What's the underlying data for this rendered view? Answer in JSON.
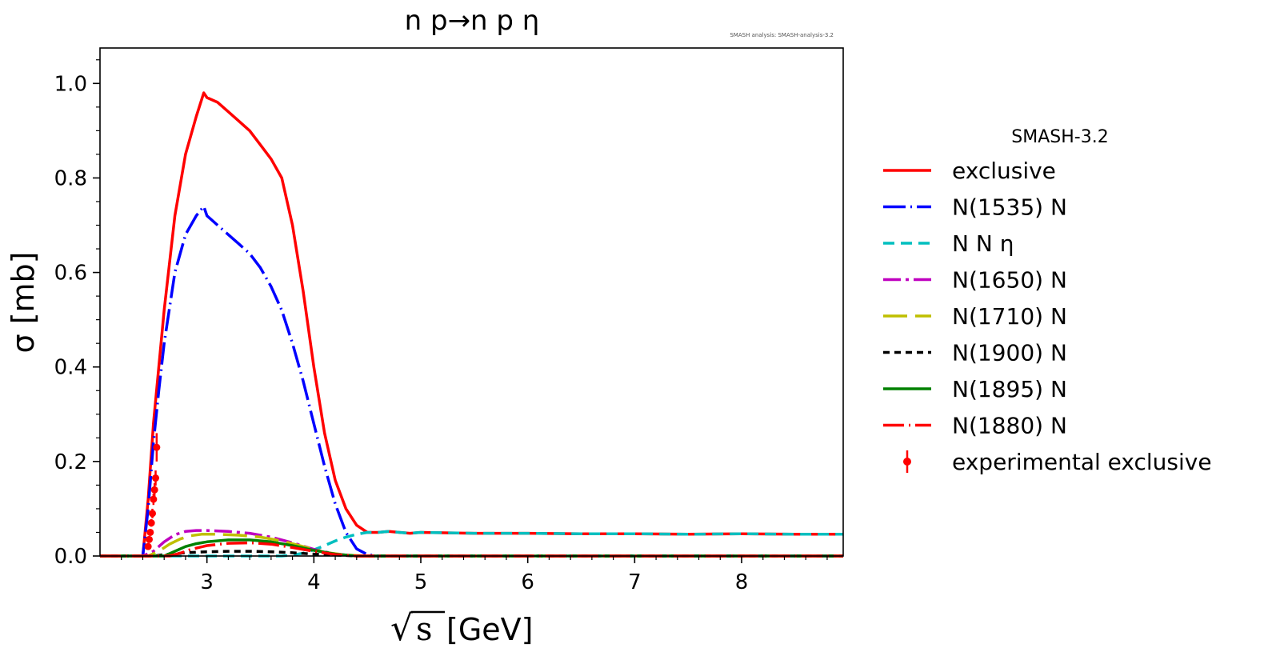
{
  "chart_data": {
    "type": "line",
    "title": "n p→n p η",
    "watermark": "SMASH analysis: SMASH-analysis-3.2",
    "xlabel": "[GeV]",
    "xlabel_sqrt": "s",
    "ylabel": "σ [mb]",
    "xlim": [
      2.0,
      8.95
    ],
    "ylim": [
      0.0,
      1.075
    ],
    "xticks": [
      3,
      4,
      5,
      6,
      7,
      8
    ],
    "xtick_labels": [
      "3",
      "4",
      "5",
      "6",
      "7",
      "8"
    ],
    "yticks": [
      0.0,
      0.2,
      0.4,
      0.6,
      0.8,
      1.0
    ],
    "ytick_labels": [
      "0.0",
      "0.2",
      "0.4",
      "0.6",
      "0.8",
      "1.0"
    ],
    "legend_title": "SMASH-3.2",
    "legend_position": "outside-right",
    "series": [
      {
        "name": "exclusive",
        "color": "#ff0000",
        "dash": "",
        "x": [
          2.0,
          2.4,
          2.45,
          2.5,
          2.55,
          2.6,
          2.7,
          2.8,
          2.9,
          2.97,
          3.0,
          3.1,
          3.2,
          3.3,
          3.4,
          3.5,
          3.6,
          3.7,
          3.8,
          3.9,
          4.0,
          4.1,
          4.2,
          4.3,
          4.4,
          4.5,
          4.6,
          4.7,
          4.8,
          4.9,
          5.0,
          5.5,
          6.0,
          6.5,
          7.0,
          7.5,
          8.0,
          8.5,
          8.95
        ],
        "y": [
          0.0,
          0.0,
          0.12,
          0.28,
          0.4,
          0.52,
          0.72,
          0.85,
          0.93,
          0.98,
          0.97,
          0.96,
          0.94,
          0.92,
          0.9,
          0.87,
          0.84,
          0.8,
          0.7,
          0.56,
          0.4,
          0.26,
          0.16,
          0.1,
          0.065,
          0.05,
          0.05,
          0.052,
          0.05,
          0.048,
          0.05,
          0.048,
          0.048,
          0.047,
          0.047,
          0.046,
          0.047,
          0.046,
          0.046
        ]
      },
      {
        "name": "N(1535) N",
        "color": "#0000ff",
        "dash": "28,6,2,6",
        "x": [
          2.0,
          2.4,
          2.45,
          2.5,
          2.55,
          2.6,
          2.7,
          2.8,
          2.9,
          2.97,
          3.0,
          3.1,
          3.2,
          3.3,
          3.4,
          3.5,
          3.6,
          3.7,
          3.8,
          3.9,
          4.0,
          4.1,
          4.2,
          4.3,
          4.4,
          4.5,
          4.6,
          5.0,
          6.0,
          7.0,
          8.0,
          8.95
        ],
        "y": [
          0.0,
          0.0,
          0.1,
          0.24,
          0.35,
          0.45,
          0.6,
          0.68,
          0.72,
          0.74,
          0.72,
          0.7,
          0.68,
          0.66,
          0.64,
          0.61,
          0.57,
          0.52,
          0.45,
          0.37,
          0.28,
          0.19,
          0.11,
          0.05,
          0.015,
          0.003,
          0.0,
          0.0,
          0.0,
          0.0,
          0.0,
          0.0
        ]
      },
      {
        "name": "N N η",
        "color": "#00bfbf",
        "dash": "14,8",
        "x": [
          2.0,
          3.7,
          3.8,
          3.9,
          4.0,
          4.1,
          4.2,
          4.3,
          4.4,
          4.5,
          4.6,
          4.7,
          4.8,
          4.9,
          5.0,
          5.5,
          6.0,
          6.5,
          7.0,
          7.5,
          8.0,
          8.5,
          8.95
        ],
        "y": [
          0.0,
          0.0,
          0.002,
          0.006,
          0.013,
          0.022,
          0.032,
          0.04,
          0.046,
          0.05,
          0.05,
          0.052,
          0.05,
          0.048,
          0.05,
          0.048,
          0.048,
          0.047,
          0.047,
          0.046,
          0.047,
          0.046,
          0.046
        ]
      },
      {
        "name": "N(1650) N",
        "color": "#bf00bf",
        "dash": "22,6,4,6",
        "x": [
          2.0,
          2.4,
          2.5,
          2.6,
          2.7,
          2.8,
          2.9,
          3.0,
          3.2,
          3.4,
          3.6,
          3.8,
          4.0,
          4.2,
          4.4,
          5.0,
          8.95
        ],
        "y": [
          0.0,
          0.0,
          0.01,
          0.03,
          0.045,
          0.052,
          0.054,
          0.054,
          0.052,
          0.048,
          0.04,
          0.028,
          0.014,
          0.004,
          0.0,
          0.0,
          0.0
        ]
      },
      {
        "name": "N(1710) N",
        "color": "#bfbf00",
        "dash": "30,10",
        "x": [
          2.0,
          2.45,
          2.55,
          2.65,
          2.75,
          2.85,
          2.95,
          3.1,
          3.3,
          3.5,
          3.7,
          3.9,
          4.1,
          4.3,
          4.5,
          5.0,
          8.95
        ],
        "y": [
          0.0,
          0.0,
          0.01,
          0.025,
          0.036,
          0.043,
          0.046,
          0.046,
          0.044,
          0.04,
          0.032,
          0.02,
          0.008,
          0.002,
          0.0,
          0.0,
          0.0
        ]
      },
      {
        "name": "N(1900) N",
        "color": "#000000",
        "dash": "8,6",
        "x": [
          2.0,
          2.5,
          2.6,
          2.8,
          3.0,
          3.2,
          3.4,
          3.6,
          3.8,
          4.0,
          4.2,
          4.4,
          5.0,
          8.95
        ],
        "y": [
          0.0,
          0.0,
          0.003,
          0.007,
          0.009,
          0.01,
          0.01,
          0.009,
          0.007,
          0.004,
          0.002,
          0.0,
          0.0,
          0.0
        ]
      },
      {
        "name": "N(1895) N",
        "color": "#008000",
        "dash": "",
        "x": [
          2.0,
          2.6,
          2.7,
          2.8,
          2.9,
          3.0,
          3.2,
          3.4,
          3.6,
          3.8,
          4.0,
          4.2,
          4.4,
          5.0,
          8.95
        ],
        "y": [
          0.0,
          0.0,
          0.01,
          0.02,
          0.026,
          0.03,
          0.034,
          0.034,
          0.03,
          0.022,
          0.012,
          0.004,
          0.0,
          0.0,
          0.0
        ]
      },
      {
        "name": "N(1880) N",
        "color": "#ff0000",
        "dash": "26,6,2,6",
        "x": [
          2.0,
          2.65,
          2.75,
          2.85,
          3.0,
          3.2,
          3.4,
          3.6,
          3.8,
          4.0,
          4.2,
          4.4,
          5.0,
          8.95
        ],
        "y": [
          0.0,
          0.0,
          0.006,
          0.014,
          0.022,
          0.027,
          0.028,
          0.025,
          0.018,
          0.01,
          0.003,
          0.0,
          0.0,
          0.0
        ]
      }
    ],
    "experimental": {
      "name": "experimental exclusive",
      "color": "#ff0000",
      "x": [
        2.45,
        2.46,
        2.47,
        2.48,
        2.49,
        2.5,
        2.51,
        2.52,
        2.53
      ],
      "y": [
        0.02,
        0.035,
        0.05,
        0.07,
        0.09,
        0.12,
        0.14,
        0.165,
        0.23
      ],
      "err": [
        0.005,
        0.006,
        0.007,
        0.008,
        0.01,
        0.012,
        0.014,
        0.016,
        0.03
      ]
    }
  }
}
